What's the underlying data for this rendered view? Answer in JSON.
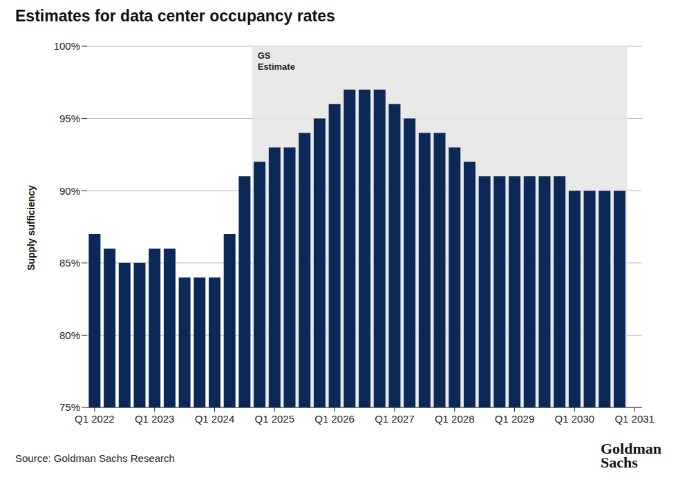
{
  "chart_data": {
    "type": "bar",
    "title": "Estimates for data center occupancy rates",
    "y_label": "Supply sufficiency",
    "categories": [
      "Q1 2022",
      null,
      null,
      null,
      "Q1 2023",
      null,
      null,
      null,
      "Q1 2024",
      null,
      null,
      null,
      "Q1 2025",
      null,
      null,
      null,
      "Q1 2026",
      null,
      null,
      null,
      "Q1 2027",
      null,
      null,
      null,
      "Q1 2028",
      null,
      null,
      null,
      "Q1 2029",
      null,
      null,
      null,
      "Q1 2030",
      null,
      null,
      null,
      "Q1 2031"
    ],
    "values": [
      87,
      86,
      85,
      85,
      86,
      86,
      84,
      84,
      84,
      87,
      91,
      92,
      93,
      93,
      94,
      95,
      96,
      97,
      97,
      97,
      96,
      95,
      94,
      94,
      93,
      92,
      91,
      91,
      91,
      91,
      91,
      91,
      90,
      90,
      90,
      90,
      null
    ],
    "color": "#0c2857",
    "ylim": [
      75,
      100
    ],
    "yticks": [
      {
        "value": 75,
        "label": "75%"
      },
      {
        "value": 80,
        "label": "80%"
      },
      {
        "value": 85,
        "label": "85%"
      },
      {
        "value": 90,
        "label": "90%"
      },
      {
        "value": 95,
        "label": "95%"
      },
      {
        "value": 100,
        "label": "100%"
      }
    ],
    "grid": true,
    "annotations": [
      {
        "text": "GS Estimate",
        "from_index": 11,
        "to_index": 35,
        "color": "#e3e3e3"
      }
    ],
    "source": "Source: Goldman Sachs Research",
    "logo": "Goldman Sachs"
  }
}
